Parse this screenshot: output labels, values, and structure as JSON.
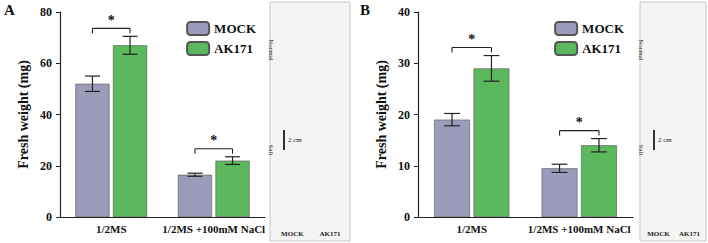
{
  "chart_data": [
    {
      "type": "bar",
      "title": "A",
      "y_label": "Fresh weight (mg)",
      "categories": [
        "1/2MS",
        "1/2MS +100mM NaCl"
      ],
      "series": [
        {
          "name": "MOCK",
          "color": "#9c9cba",
          "values": [
            52,
            16.5
          ],
          "errors": [
            3,
            0.6
          ]
        },
        {
          "name": "AK171",
          "color": "#5cb85c",
          "values": [
            67,
            22
          ],
          "errors": [
            3.5,
            1.5
          ]
        }
      ],
      "ylim": [
        0,
        80
      ],
      "yticks": [
        0,
        20,
        40,
        60,
        80
      ],
      "grid": false,
      "legend": "upper right",
      "significance": [
        {
          "category": "1/2MS",
          "label": "*"
        },
        {
          "category": "1/2MS +100mM NaCl",
          "label": "*"
        }
      ],
      "annotations": [
        "Normal",
        "Salt",
        "2 cm",
        "MOCK",
        "AK171"
      ]
    },
    {
      "type": "bar",
      "title": "B",
      "y_label": "Fresh weight (mg)",
      "categories": [
        "1/2MS",
        "1/2MS +100mM NaCl"
      ],
      "series": [
        {
          "name": "MOCK",
          "color": "#9c9cba",
          "values": [
            19,
            9.5
          ],
          "errors": [
            1.2,
            0.8
          ]
        },
        {
          "name": "AK171",
          "color": "#5cb85c",
          "values": [
            29,
            14
          ],
          "errors": [
            2.5,
            1.3
          ]
        }
      ],
      "ylim": [
        0,
        40
      ],
      "yticks": [
        0,
        10,
        20,
        30,
        40
      ],
      "grid": false,
      "legend": "upper right",
      "significance": [
        {
          "category": "1/2MS",
          "label": "*"
        },
        {
          "category": "1/2MS +100mM NaCl",
          "label": "*"
        }
      ],
      "annotations": [
        "Normal",
        "Salt",
        "2 cm",
        "MOCK",
        "AK171"
      ]
    }
  ]
}
